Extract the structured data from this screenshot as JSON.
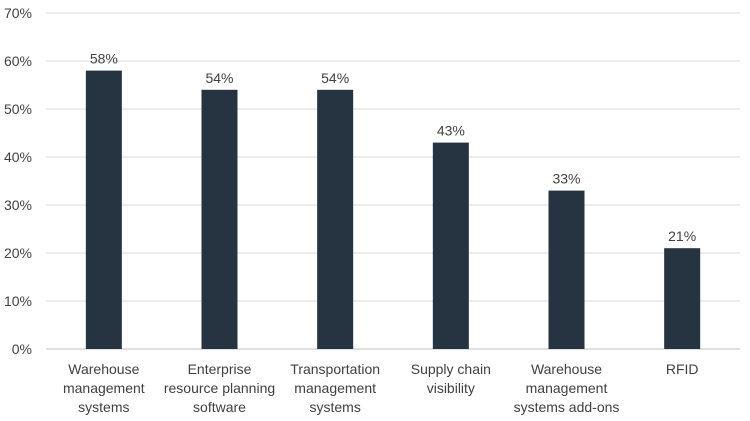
{
  "chart_data": {
    "type": "bar",
    "categories": [
      "Warehouse management systems",
      "Enterprise resource planning software",
      "Transportation management systems",
      "Supply chain visibility",
      "Warehouse management systems add-ons",
      "RFID"
    ],
    "category_lines": [
      [
        "Warehouse",
        "management",
        "systems"
      ],
      [
        "Enterprise",
        "resource planning",
        "software"
      ],
      [
        "Transportation",
        "management",
        "systems"
      ],
      [
        "Supply chain",
        "visibility"
      ],
      [
        "Warehouse",
        "management",
        "systems add-ons"
      ],
      [
        "RFID"
      ]
    ],
    "values": [
      58,
      54,
      54,
      43,
      33,
      21
    ],
    "data_labels": [
      "58%",
      "54%",
      "54%",
      "43%",
      "33%",
      "21%"
    ],
    "y_ticks": [
      "0%",
      "10%",
      "20%",
      "30%",
      "40%",
      "50%",
      "60%",
      "70%"
    ],
    "ylim": [
      0,
      70
    ],
    "title": "",
    "xlabel": "",
    "ylabel": "",
    "grid": true,
    "bar_color": "#263340"
  }
}
